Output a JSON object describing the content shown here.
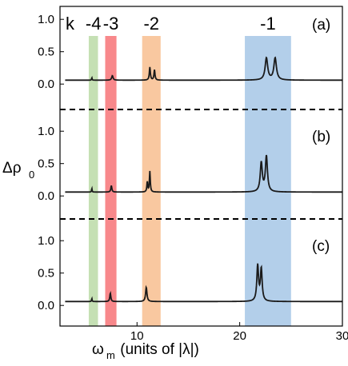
{
  "chart_data": {
    "type": "line",
    "xlabel_main": "ω",
    "xlabel_sub": "m",
    "xlabel_rest": " (units of |λ|)",
    "ylabel_main": "Δρ",
    "ylabel_sub": "0",
    "xlim": [
      2.5,
      30
    ],
    "xticks": [
      "10",
      "20",
      "30"
    ],
    "xtick_values": [
      10,
      20,
      30
    ],
    "ylim": [
      -0.2,
      1.2
    ],
    "yticks": [
      "0.0",
      "0.5",
      "1.0"
    ],
    "ytick_values": [
      0.0,
      0.5,
      1.0
    ],
    "k_label": "k",
    "bands": [
      {
        "label": "-4",
        "x_range": [
          5.3,
          6.2
        ],
        "color": "#c5e0b4"
      },
      {
        "label": "-3",
        "x_range": [
          6.9,
          8.0
        ],
        "color": "#f8888b"
      },
      {
        "label": "-2",
        "x_range": [
          10.5,
          12.3
        ],
        "color": "#f9c8a0"
      },
      {
        "label": "-1",
        "x_range": [
          20.5,
          25.0
        ],
        "color": "#b3cfea"
      }
    ],
    "panels": [
      {
        "label": "(a)",
        "baseline": 0.06,
        "peaks": [
          {
            "x": 5.6,
            "h": 0.04,
            "w": 0.03
          },
          {
            "x": 7.6,
            "h": 0.07,
            "w": 0.08
          },
          {
            "x": 11.25,
            "h": 0.2,
            "w": 0.06
          },
          {
            "x": 11.7,
            "h": 0.16,
            "w": 0.06
          },
          {
            "x": 22.6,
            "h": 0.34,
            "w": 0.15
          },
          {
            "x": 23.45,
            "h": 0.34,
            "w": 0.15
          }
        ]
      },
      {
        "label": "(b)",
        "baseline": 0.06,
        "peaks": [
          {
            "x": 5.6,
            "h": 0.06,
            "w": 0.03
          },
          {
            "x": 7.5,
            "h": 0.1,
            "w": 0.06
          },
          {
            "x": 11.0,
            "h": 0.16,
            "w": 0.05
          },
          {
            "x": 11.25,
            "h": 0.32,
            "w": 0.05
          },
          {
            "x": 22.1,
            "h": 0.45,
            "w": 0.12
          },
          {
            "x": 22.6,
            "h": 0.55,
            "w": 0.12
          }
        ]
      },
      {
        "label": "(c)",
        "baseline": 0.06,
        "peaks": [
          {
            "x": 5.6,
            "h": 0.05,
            "w": 0.03
          },
          {
            "x": 7.4,
            "h": 0.13,
            "w": 0.06
          },
          {
            "x": 10.9,
            "h": 0.22,
            "w": 0.08
          },
          {
            "x": 21.75,
            "h": 0.55,
            "w": 0.1
          },
          {
            "x": 22.1,
            "h": 0.5,
            "w": 0.1
          }
        ]
      }
    ]
  }
}
